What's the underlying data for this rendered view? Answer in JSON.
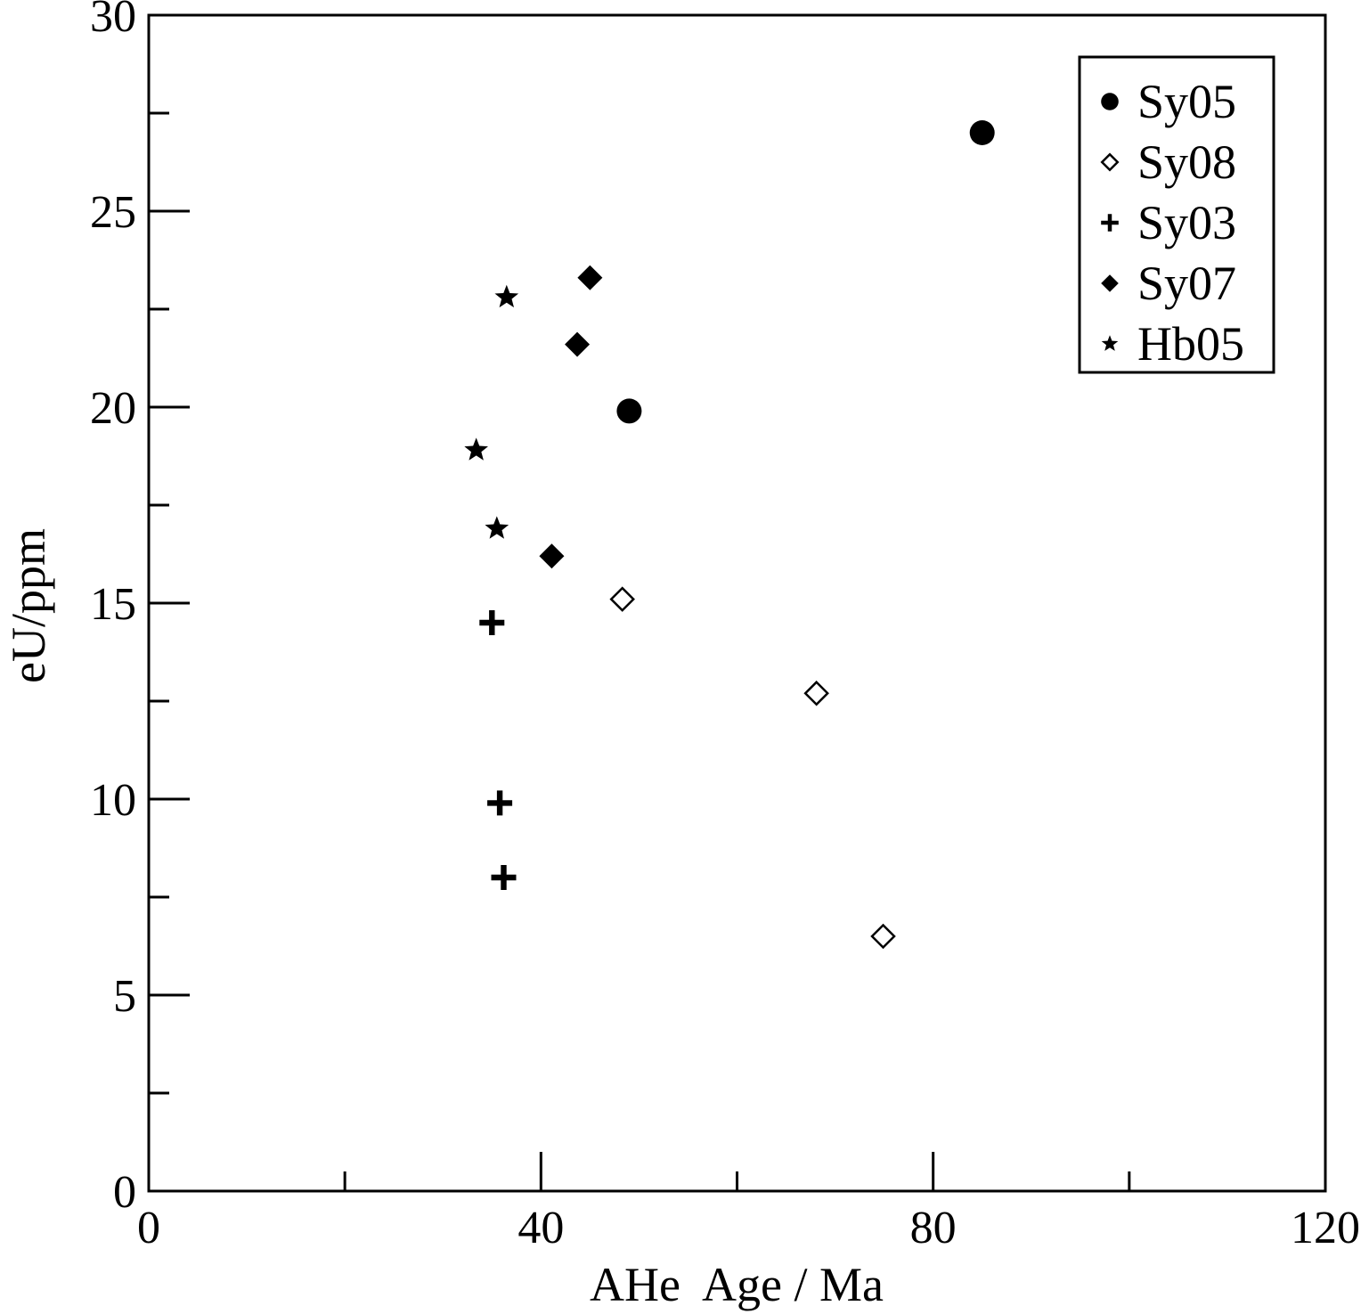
{
  "chart_data": {
    "type": "scatter",
    "title": "",
    "xlabel": "AHe  Age / Ma",
    "ylabel": "eU/ppm",
    "xlim": [
      0,
      120
    ],
    "ylim": [
      0,
      30
    ],
    "x_major_ticks": [
      0,
      40,
      80,
      120
    ],
    "x_minor_ticks": [
      20,
      60,
      100
    ],
    "y_major_ticks": [
      0,
      5,
      10,
      15,
      20,
      25,
      30
    ],
    "y_minor_ticks": [
      2.5,
      7.5,
      12.5,
      17.5,
      22.5,
      27.5
    ],
    "grid": false,
    "legend_position": "top-right",
    "series": [
      {
        "name": "Sy05",
        "marker": "filled-circle",
        "points": [
          [
            85,
            27.0
          ],
          [
            49,
            19.9
          ]
        ]
      },
      {
        "name": "Sy08",
        "marker": "open-diamond",
        "points": [
          [
            48.3,
            15.1
          ],
          [
            68.1,
            12.7
          ],
          [
            74.9,
            6.5
          ]
        ]
      },
      {
        "name": "Sy03",
        "marker": "plus",
        "points": [
          [
            35.0,
            14.5
          ],
          [
            35.8,
            9.9
          ],
          [
            36.2,
            8.0
          ]
        ]
      },
      {
        "name": "Sy07",
        "marker": "filled-diamond",
        "points": [
          [
            45.0,
            23.3
          ],
          [
            43.7,
            21.6
          ],
          [
            41.1,
            16.2
          ]
        ]
      },
      {
        "name": "Hb05",
        "marker": "star",
        "points": [
          [
            36.5,
            22.8
          ],
          [
            33.4,
            18.9
          ],
          [
            35.5,
            16.9
          ]
        ]
      }
    ]
  }
}
